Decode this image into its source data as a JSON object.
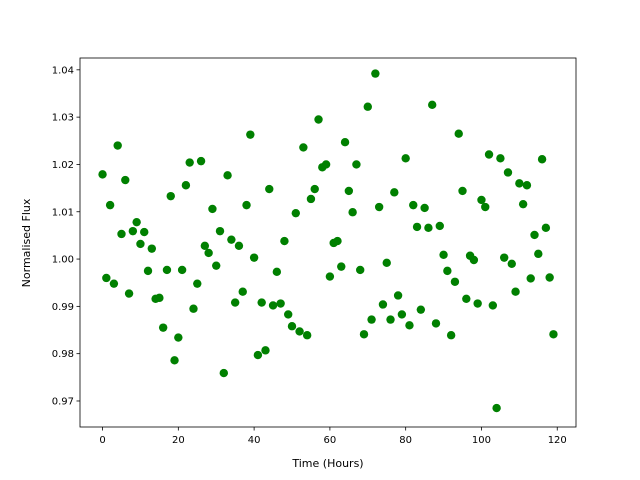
{
  "chart_data": {
    "type": "scatter",
    "x_label": "Time (Hours)",
    "y_label": "Normalised Flux",
    "color": "#008000",
    "xlim": [
      -5.95,
      124.95
    ],
    "ylim": [
      0.9645,
      1.0425
    ],
    "xticks": [
      0,
      20,
      40,
      60,
      80,
      100,
      120
    ],
    "yticks": [
      0.97,
      0.98,
      0.99,
      {
        "value": 1.0,
        "label": "1.00"
      },
      1.01,
      1.02,
      1.03,
      1.04
    ],
    "x": [
      0,
      1,
      2,
      3,
      4,
      5,
      6,
      7,
      8,
      9,
      10,
      11,
      12,
      13,
      14,
      15,
      16,
      17,
      18,
      19,
      20,
      21,
      22,
      23,
      24,
      25,
      26,
      27,
      28,
      29,
      30,
      31,
      32,
      33,
      34,
      35,
      36,
      37,
      38,
      39,
      40,
      41,
      42,
      43,
      44,
      45,
      46,
      47,
      48,
      49,
      50,
      51,
      52,
      53,
      54,
      55,
      56,
      57,
      58,
      59,
      60,
      61,
      62,
      63,
      64,
      65,
      66,
      67,
      68,
      69,
      70,
      71,
      72,
      73,
      74,
      75,
      76,
      77,
      78,
      79,
      80,
      81,
      82,
      83,
      84,
      85,
      86,
      87,
      88,
      89,
      90,
      91,
      92,
      93,
      94,
      95,
      96,
      97,
      98,
      99,
      100,
      101,
      102,
      103,
      104,
      105,
      106,
      107,
      108,
      109,
      110,
      111,
      112,
      113,
      114,
      115,
      116,
      117,
      118,
      119
    ],
    "y": [
      1.0179,
      0.996,
      1.0114,
      0.9948,
      1.024,
      1.0053,
      1.0167,
      0.9927,
      1.0059,
      1.0078,
      1.0032,
      1.0057,
      0.9975,
      1.0022,
      0.9916,
      0.9918,
      0.9855,
      0.9977,
      1.0133,
      0.9786,
      0.9834,
      0.9977,
      1.0156,
      1.0204,
      0.9895,
      0.9948,
      1.0207,
      1.0028,
      1.0013,
      1.0106,
      0.9986,
      1.0059,
      0.9759,
      1.0177,
      1.0041,
      0.9908,
      1.0028,
      0.9931,
      1.0114,
      1.0263,
      1.0003,
      0.9797,
      0.9908,
      0.9807,
      1.0148,
      0.9902,
      0.9973,
      0.9906,
      1.0038,
      0.9883,
      0.9858,
      1.0097,
      0.9847,
      1.0236,
      0.9839,
      1.0127,
      1.0148,
      1.0295,
      1.0194,
      1.02,
      0.9963,
      1.0034,
      1.0038,
      0.9984,
      1.0247,
      1.0144,
      1.0099,
      1.02,
      0.9977,
      0.9841,
      1.0322,
      0.9872,
      1.0392,
      1.011,
      0.9904,
      0.9992,
      0.9872,
      1.0141,
      0.9923,
      0.9883,
      1.0213,
      0.986,
      1.0114,
      1.0068,
      0.9893,
      1.0108,
      1.0066,
      1.0326,
      0.9864,
      1.007,
      1.0009,
      0.9975,
      0.9839,
      0.9952,
      1.0265,
      1.0144,
      0.9916,
      1.0007,
      0.9998,
      0.9906,
      1.0125,
      1.011,
      1.0221,
      0.9902,
      0.9685,
      1.0213,
      1.0003,
      1.0183,
      0.999,
      0.9931,
      1.016,
      1.0116,
      1.0156,
      0.9959,
      1.0051,
      1.0011,
      1.0211,
      1.0066,
      0.9961,
      0.9841
    ]
  }
}
